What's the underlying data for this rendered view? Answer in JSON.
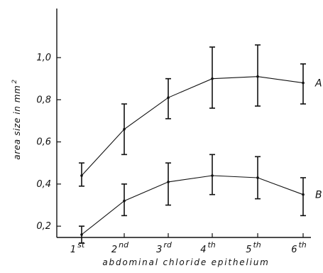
{
  "chart_data": {
    "type": "line",
    "title": "",
    "xlabel": "abdominal chloride epithelium",
    "ylabel_prefix": "area size in mm",
    "ylabel_sup": "2",
    "ylim": [
      0.0,
      1.0
    ],
    "yticks": [
      "0,2",
      "0,4",
      "0,6",
      "0,8",
      "1,0"
    ],
    "ytick_values": [
      0.2,
      0.4,
      0.6,
      0.8,
      1.0
    ],
    "categories": [
      {
        "base": "1",
        "sup": "st"
      },
      {
        "base": "2",
        "sup": "nd"
      },
      {
        "base": "3",
        "sup": "rd"
      },
      {
        "base": "4",
        "sup": "th"
      },
      {
        "base": "5",
        "sup": "th"
      },
      {
        "base": "6",
        "sup": "th"
      }
    ],
    "grid": false,
    "series": [
      {
        "name": "A",
        "values": [
          0.44,
          0.66,
          0.81,
          0.9,
          0.91,
          0.88
        ],
        "err_low": [
          0.39,
          0.54,
          0.71,
          0.76,
          0.77,
          0.78
        ],
        "err_high": [
          0.5,
          0.78,
          0.9,
          1.05,
          1.06,
          0.97
        ],
        "color": "#111111"
      },
      {
        "name": "B",
        "values": [
          0.16,
          0.32,
          0.41,
          0.44,
          0.43,
          0.35
        ],
        "err_low": [
          0.12,
          0.25,
          0.3,
          0.35,
          0.33,
          0.25
        ],
        "err_high": [
          0.2,
          0.4,
          0.5,
          0.54,
          0.53,
          0.43
        ],
        "color": "#111111"
      }
    ]
  }
}
